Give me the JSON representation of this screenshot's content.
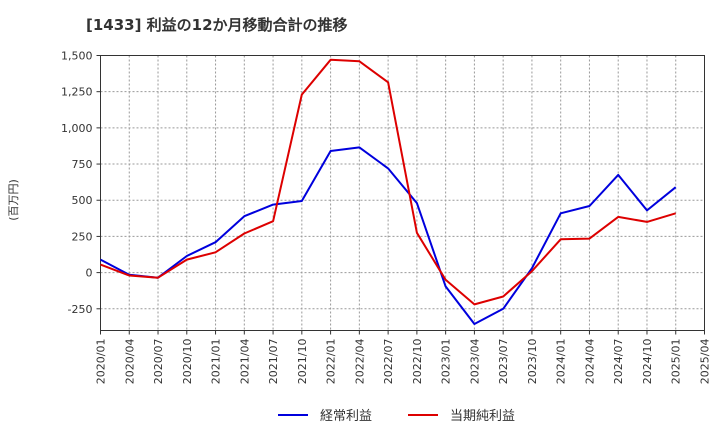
{
  "chart_data": {
    "type": "line",
    "title": "[1433]  利益の12か月移動合計の推移",
    "ylabel": "(百万円)",
    "xlabel": "",
    "ylim": [
      -400,
      1500
    ],
    "yticks": [
      1500,
      1250,
      1000,
      750,
      500,
      250,
      0,
      -250
    ],
    "ytick_labels": [
      "1,500",
      "1,250",
      "1,000",
      "750",
      "500",
      "250",
      "0",
      "-250"
    ],
    "categories": [
      "2020/01",
      "2020/04",
      "2020/07",
      "2020/10",
      "2021/01",
      "2021/04",
      "2021/07",
      "2021/10",
      "2022/01",
      "2022/04",
      "2022/07",
      "2022/10",
      "2023/01",
      "2023/04",
      "2023/07",
      "2023/10",
      "2024/01",
      "2024/04",
      "2024/07",
      "2024/10",
      "2025/01",
      "2025/04"
    ],
    "series": [
      {
        "name": "経常利益",
        "color": "#0000dd",
        "values": [
          90,
          -15,
          -35,
          115,
          210,
          390,
          470,
          495,
          840,
          865,
          720,
          480,
          -95,
          -355,
          -250,
          30,
          410,
          460,
          675,
          430,
          590,
          null
        ]
      },
      {
        "name": "当期純利益",
        "color": "#dd0000",
        "values": [
          55,
          -20,
          -35,
          90,
          140,
          270,
          355,
          1230,
          1470,
          1460,
          1315,
          275,
          -50,
          -220,
          -165,
          10,
          230,
          235,
          385,
          350,
          410,
          null
        ]
      }
    ],
    "grid": true,
    "legend": "bottom-center"
  }
}
